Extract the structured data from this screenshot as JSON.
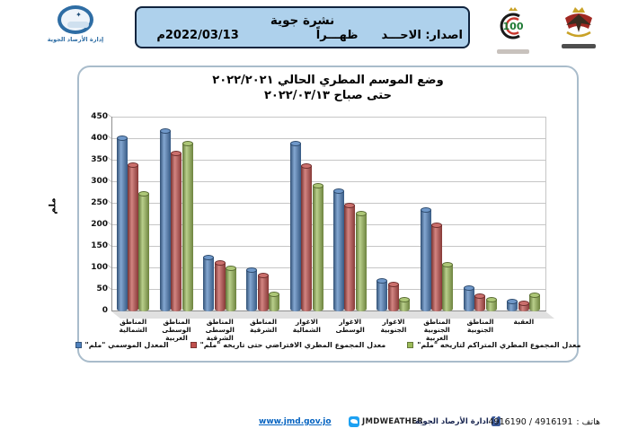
{
  "logo_left": {
    "caption": "إدارة الأرصاد الجوية"
  },
  "header": {
    "title": "نشرة جوية",
    "issue_label": "اصدار: الاحـــد",
    "time_of_day": "ظهـــراً",
    "date": "2022/03/13م"
  },
  "logos_right": {
    "centennial_number": "100"
  },
  "chart_data": {
    "type": "bar",
    "style": "3d-cylinder",
    "title_line1": "وضع الموسم المطري الحالي ٢٠٢٢/٢٠٢١",
    "title_line2": "حتى صباح ٢٠٢٢/٠٣/١٣",
    "ylabel": "ملم",
    "ylim": [
      0,
      450
    ],
    "ytick_step": 50,
    "grid": true,
    "legend_position": "bottom-rtl-reversed",
    "categories": [
      "المناطق الشمالية",
      "المناطق الوسطى الغربية",
      "المناطق الوسطى الشرقية",
      "المناطق الشرقية",
      "الاغوار الشمالية",
      "الاغوار الوسطى",
      "الاغوار الجنوبية",
      "المناطق الجنوبية الغربية",
      "المناطق الجنوبية",
      "العقبة"
    ],
    "series": [
      {
        "name": "المعدل الموسمي \"ملم\"",
        "color": "#4f81bd",
        "values": [
          403,
          418,
          126,
          95,
          390,
          280,
          70,
          236,
          54,
          23
        ]
      },
      {
        "name": "معدل المجموع المطري الافتراضي حتى تاريخه \"ملم\"",
        "color": "#c0504d",
        "values": [
          340,
          367,
          112,
          83,
          338,
          245,
          62,
          201,
          36,
          18
        ]
      },
      {
        "name": "معدل المجموع المطري المتراكم لتاريخه \"ملم\"",
        "color": "#9bbb59",
        "values": [
          272,
          390,
          100,
          40,
          292,
          228,
          28,
          108,
          27,
          37
        ]
      }
    ]
  },
  "footer": {
    "website": "www.jmd.gov.jo",
    "twitter_handle": "JMDWEATHER",
    "facebook_label": "ادارة الأرصاد الجوية",
    "phone_label": "هاتف :",
    "phone_numbers": "4916190 / 4916191"
  }
}
